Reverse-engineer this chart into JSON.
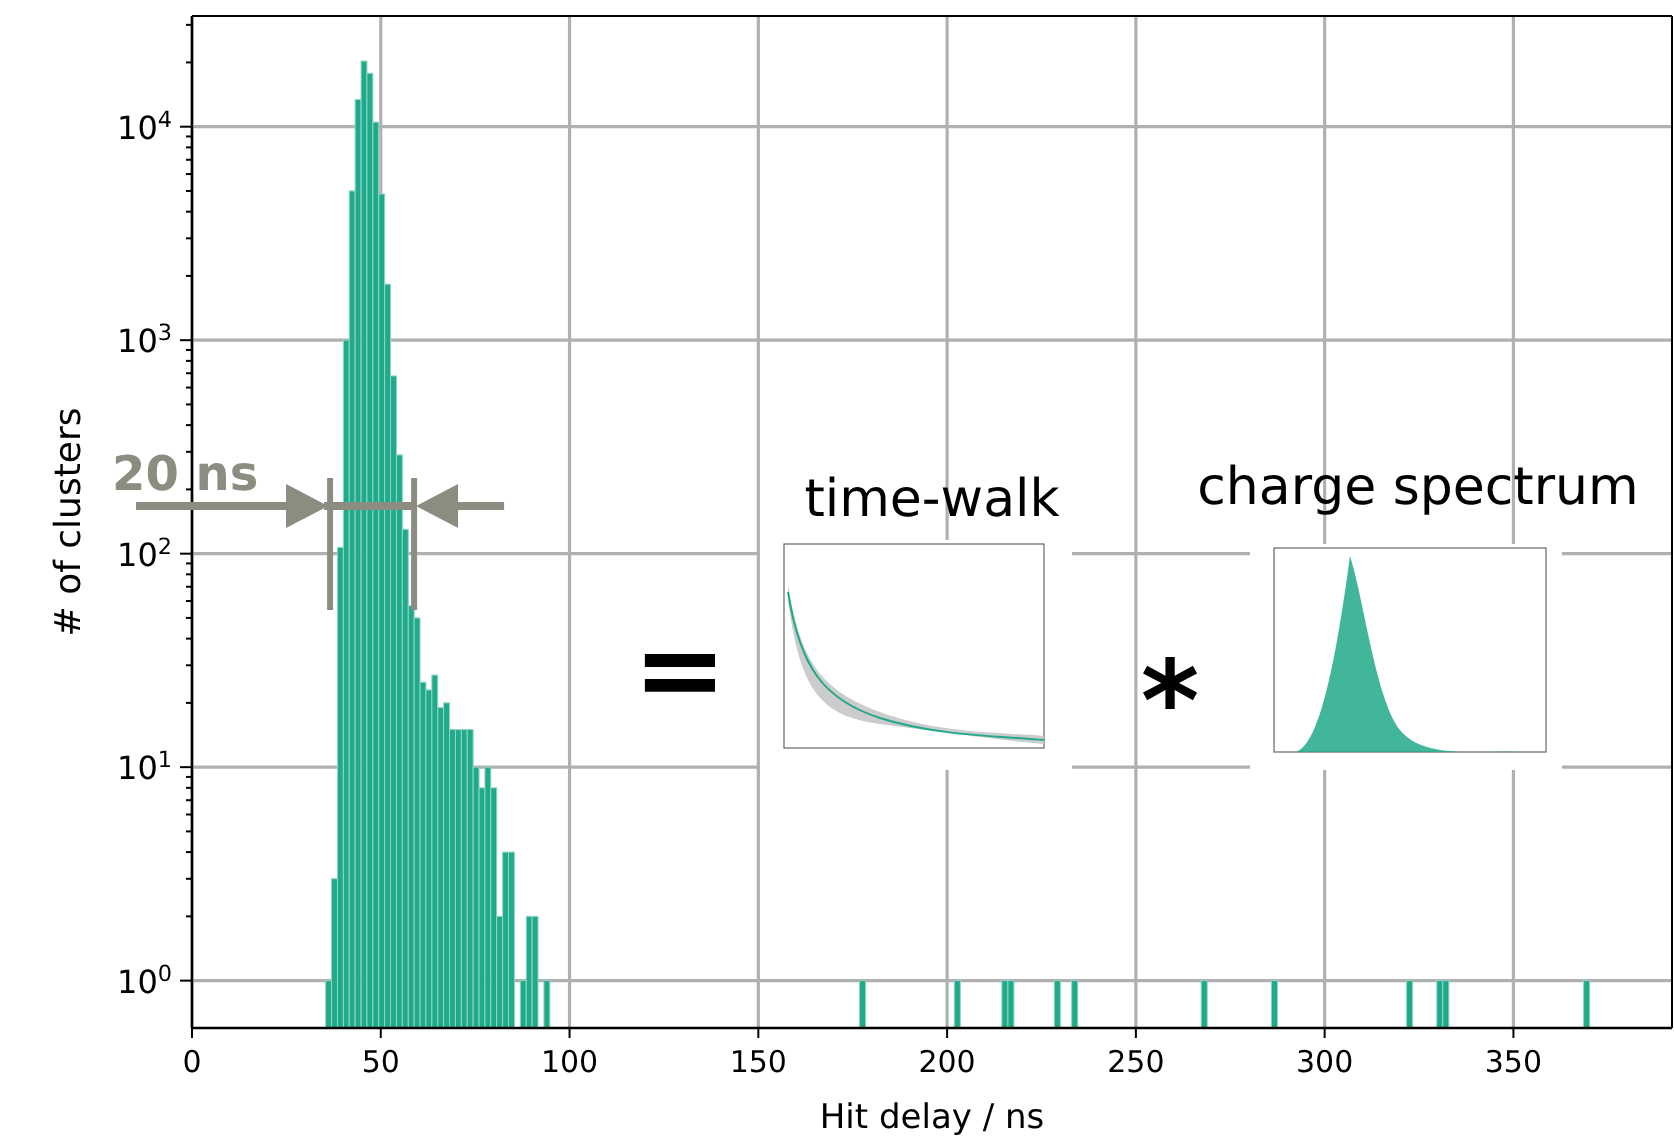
{
  "chart_data": {
    "type": "histogram",
    "xlabel": "Hit delay / ns",
    "ylabel": "# of clusters",
    "log": "y",
    "grid": true,
    "xlim": [
      0,
      392
    ],
    "xticks": [
      0,
      50,
      100,
      150,
      200,
      250,
      300,
      350
    ],
    "ylim": [
      0.6,
      33000
    ],
    "yticks": [
      {
        "value": 1,
        "label": "10$^{0}$"
      },
      {
        "value": 2,
        "label": null
      },
      {
        "value": 3,
        "label": null
      },
      {
        "value": 4,
        "label": null
      },
      {
        "value": 5,
        "label": null
      },
      {
        "value": 6,
        "label": null
      },
      {
        "value": 7,
        "label": null
      },
      {
        "value": 8,
        "label": null
      },
      {
        "value": 9,
        "label": null
      },
      {
        "value": 10,
        "label": "10$^{1}$"
      },
      {
        "value": 20,
        "label": null
      },
      {
        "value": 30,
        "label": null
      },
      {
        "value": 40,
        "label": null
      },
      {
        "value": 50,
        "label": null
      },
      {
        "value": 60,
        "label": null
      },
      {
        "value": 70,
        "label": null
      },
      {
        "value": 80,
        "label": null
      },
      {
        "value": 90,
        "label": null
      },
      {
        "value": 100,
        "label": "10$^{2}$"
      },
      {
        "value": 200,
        "label": null
      },
      {
        "value": 300,
        "label": null
      },
      {
        "value": 400,
        "label": null
      },
      {
        "value": 500,
        "label": null
      },
      {
        "value": 600,
        "label": null
      },
      {
        "value": 700,
        "label": null
      },
      {
        "value": 800,
        "label": null
      },
      {
        "value": 900,
        "label": null
      },
      {
        "value": 1000,
        "label": "10$^{3}$"
      },
      {
        "value": 2000,
        "label": null
      },
      {
        "value": 3000,
        "label": null
      },
      {
        "value": 4000,
        "label": null
      },
      {
        "value": 5000,
        "label": null
      },
      {
        "value": 6000,
        "label": null
      },
      {
        "value": 7000,
        "label": null
      },
      {
        "value": 8000,
        "label": null
      },
      {
        "value": 9000,
        "label": null
      },
      {
        "value": 10000,
        "label": "10$^{4}$"
      },
      {
        "value": 20000,
        "label": null
      },
      {
        "value": 30000,
        "label": null
      }
    ],
    "color": "#20a98a",
    "bins": [
      35.4,
      36.96,
      38.53,
      40.09,
      41.65,
      43.21,
      44.78,
      46.34,
      47.9,
      49.46,
      51.03,
      52.59,
      54.15,
      55.71,
      57.28,
      58.84,
      60.4,
      61.96,
      63.53,
      65.09,
      66.65,
      68.21,
      69.78,
      71.34,
      72.9,
      74.46,
      76.03,
      77.59,
      79.15,
      80.71,
      82.28,
      83.84,
      85.4,
      86.96,
      88.53,
      90.09,
      91.65,
      93.21,
      94.78,
      176.8,
      178.4,
      201.9,
      203.5,
      214.5,
      216.1,
      217.7,
      228.4,
      230.0,
      233.0,
      234.6,
      267.3,
      268.9,
      285.9,
      287.5,
      321.7,
      323.3,
      329.7,
      331.3,
      332.9,
      368.6,
      370.2
    ],
    "values": [
      1,
      3,
      107,
      1000,
      5000,
      13400,
      20300,
      17800,
      10500,
      4840,
      1830,
      680,
      290,
      130,
      57,
      50,
      25,
      23,
      27,
      19,
      20,
      15,
      15,
      15,
      15,
      10,
      8,
      10,
      8,
      2,
      4,
      4,
      null,
      1,
      2,
      2,
      null,
      1,
      null,
      1,
      null,
      1,
      null,
      1,
      1,
      null,
      1,
      null,
      1,
      null,
      1,
      null,
      1,
      null,
      1,
      null,
      1,
      1,
      null,
      1
    ],
    "annotations": [
      {
        "text": "20 ns",
        "x": 47.7,
        "y": 167
      },
      "=",
      "time-walk",
      "*",
      "charge spectrum"
    ]
  }
}
